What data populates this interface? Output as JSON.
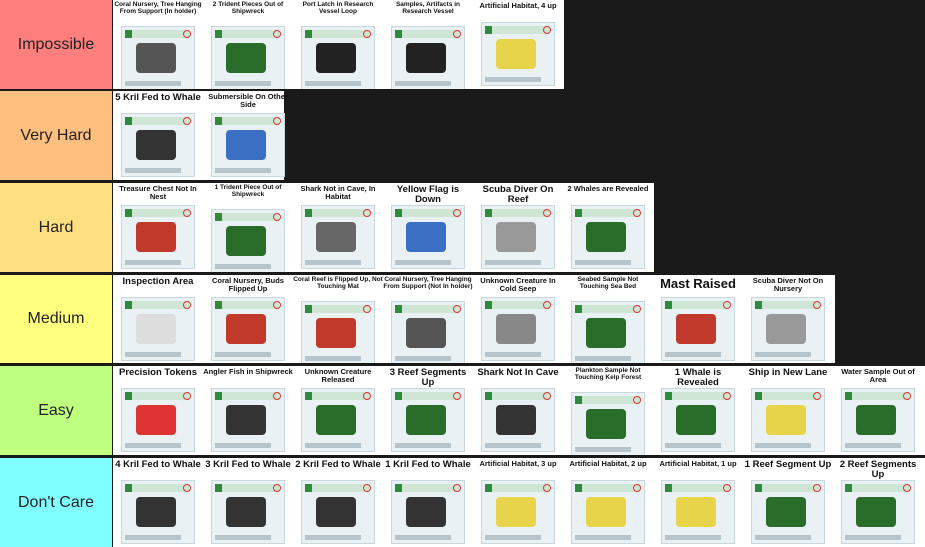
{
  "tiers": [
    {
      "label": "Impossible",
      "color": "#ff7f7f",
      "items": [
        {
          "title": "Coral Nursery, Tree Hanging From Support (In holder)",
          "obj": "#555"
        },
        {
          "title": "2 Trident Pieces Out of Shipwreck",
          "obj": "#2a6d2a"
        },
        {
          "title": "Port Latch in Research Vessel Loop",
          "obj": "#222"
        },
        {
          "title": "Samples, Artifacts in Research Vessel",
          "obj": "#222"
        },
        {
          "title": "Artificial Habitat, 4 up",
          "obj": "#e8d44a"
        }
      ]
    },
    {
      "label": "Very Hard",
      "color": "#ffbf7f",
      "items": [
        {
          "title": "5 Kril Fed to Whale",
          "obj": "#333"
        },
        {
          "title": "Submersible On Other Side",
          "obj": "#3a6fc4"
        }
      ]
    },
    {
      "label": "Hard",
      "color": "#ffdf7f",
      "items": [
        {
          "title": "Treasure Chest Not In Nest",
          "obj": "#c0392b"
        },
        {
          "title": "1 Trident Piece Out of Shipwreck",
          "obj": "#2a6d2a"
        },
        {
          "title": "Shark Not in Cave, In Habitat",
          "obj": "#666"
        },
        {
          "title": "Yellow Flag is Down",
          "obj": "#3a6fc4"
        },
        {
          "title": "Scuba Diver On Reef",
          "obj": "#999"
        },
        {
          "title": "2 Whales are Revealed",
          "obj": "#2a6d2a"
        }
      ]
    },
    {
      "label": "Medium",
      "color": "#ffff7f",
      "items": [
        {
          "title": "Inspection Area",
          "obj": "#ddd"
        },
        {
          "title": "Coral Nursery, Buds Flipped Up",
          "obj": "#c0392b"
        },
        {
          "title": "Coral Reef is Flipped Up, Not Touching Mat",
          "obj": "#c0392b"
        },
        {
          "title": "Coral Nursery, Tree Hanging From Support (Not In holder)",
          "obj": "#555"
        },
        {
          "title": "Unknown Creature In Cold Seep",
          "obj": "#888"
        },
        {
          "title": "Seabed Sample Not Touching Sea Bed",
          "obj": "#2a6d2a"
        },
        {
          "title": "Mast Raised",
          "obj": "#c0392b"
        },
        {
          "title": "Scuba Diver Not On Nursery",
          "obj": "#999"
        }
      ]
    },
    {
      "label": "Easy",
      "color": "#bfff7f",
      "items": [
        {
          "title": "Precision Tokens",
          "obj": "#d33"
        },
        {
          "title": "Angler Fish in Shipwreck",
          "obj": "#333"
        },
        {
          "title": "Unknown Creature Released",
          "obj": "#2a6d2a"
        },
        {
          "title": "3 Reef Segments Up",
          "obj": "#2a6d2a"
        },
        {
          "title": "Shark Not In Cave",
          "obj": "#333"
        },
        {
          "title": "Plankton Sample Not Touching Kelp Forest",
          "obj": "#2a6d2a"
        },
        {
          "title": "1 Whale is Revealed",
          "obj": "#2a6d2a"
        },
        {
          "title": "Ship in New Lane",
          "obj": "#e8d44a"
        },
        {
          "title": "Water Sample Out of Area",
          "obj": "#2a6d2a"
        }
      ]
    },
    {
      "label": "Don't Care",
      "color": "#7fffff",
      "items": [
        {
          "title": "4 Kril Fed to Whale",
          "obj": "#333"
        },
        {
          "title": "3 Kril Fed to Whale",
          "obj": "#333"
        },
        {
          "title": "2 Kril Fed to Whale",
          "obj": "#333"
        },
        {
          "title": "1 Kril Fed to Whale",
          "obj": "#333"
        },
        {
          "title": "Artificial Habitat, 3 up",
          "obj": "#e8d44a"
        },
        {
          "title": "Artificial Habitat, 2 up",
          "obj": "#e8d44a"
        },
        {
          "title": "Artificial Habitat, 1 up",
          "obj": "#e8d44a"
        },
        {
          "title": "1 Reef Segment Up",
          "obj": "#2a6d2a"
        },
        {
          "title": "2 Reef Segments Up",
          "obj": "#2a6d2a"
        }
      ]
    }
  ]
}
